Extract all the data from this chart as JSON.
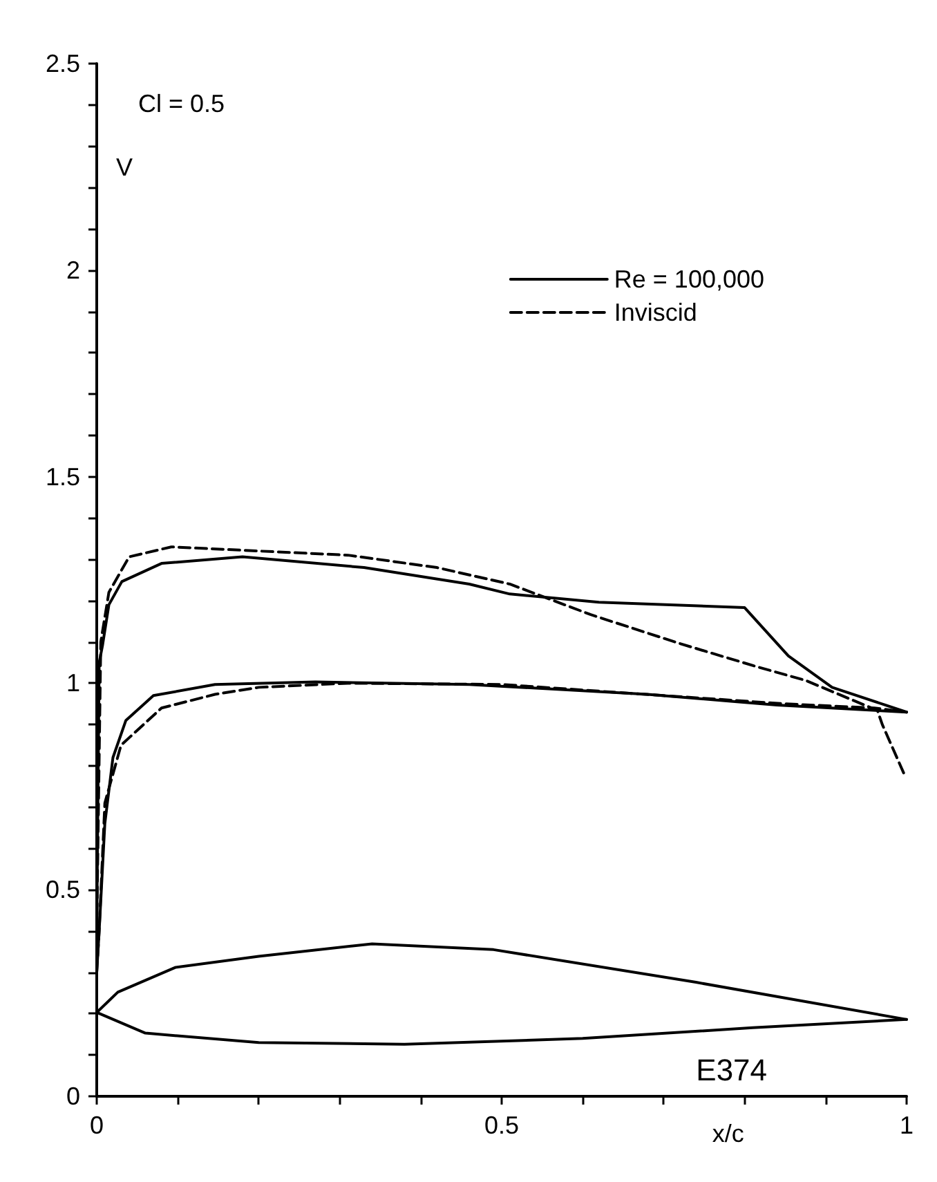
{
  "chart_data": {
    "type": "line",
    "xlabel": "x/c",
    "ylabel": "V",
    "annotations": [
      "Cl = 0.5",
      "E374"
    ],
    "xlim": [
      0,
      1
    ],
    "xticks": [
      0,
      {
        "value": 0.1,
        "label": null
      },
      {
        "value": 0.2,
        "label": null
      },
      {
        "value": 0.3,
        "label": null
      },
      {
        "value": 0.4,
        "label": null
      },
      0.5,
      {
        "value": 0.6,
        "label": null
      },
      {
        "value": 0.7,
        "label": null
      },
      {
        "value": 0.8,
        "label": null
      },
      {
        "value": 0.9,
        "label": null
      },
      1
    ],
    "ylim": [
      0,
      2.5
    ],
    "yticks": [
      0,
      {
        "value": 0.1,
        "label": null
      },
      {
        "value": 0.2,
        "label": null
      },
      {
        "value": 0.3,
        "label": null
      },
      {
        "value": 0.4,
        "label": null
      },
      0.5,
      {
        "value": 0.6,
        "label": null
      },
      {
        "value": 0.7,
        "label": null
      },
      {
        "value": 0.8,
        "label": null
      },
      {
        "value": 0.9,
        "label": null
      },
      1,
      {
        "value": 1.1,
        "label": null
      },
      {
        "value": 1.2,
        "label": null
      },
      {
        "value": 1.3,
        "label": null
      },
      {
        "value": 1.4,
        "label": null
      },
      1.5,
      {
        "value": 1.6,
        "label": null
      },
      {
        "value": 1.7,
        "label": null
      },
      {
        "value": 1.8,
        "label": null
      },
      {
        "value": 1.9,
        "label": null
      },
      2,
      {
        "value": 2.1,
        "label": null
      },
      {
        "value": 2.2,
        "label": null
      },
      {
        "value": 2.3,
        "label": null
      },
      {
        "value": 2.4,
        "label": null
      },
      2.5
    ],
    "grid": false,
    "legend": "top right",
    "marker": "none",
    "series": [
      {
        "name": "Re = 100,000",
        "color": "#000000",
        "line_style": "solid",
        "x": [
          0,
          0.003,
          0.007,
          0.015,
          0.031,
          0.08,
          0.18,
          0.33,
          0.46,
          0.51,
          0.62,
          0.8,
          0.854,
          0.908,
          1
        ],
        "values": [
          0.4,
          1.05,
          1.09,
          1.19,
          1.246,
          1.29,
          1.306,
          1.28,
          1.24,
          1.216,
          1.196,
          1.183,
          1.066,
          0.99,
          0.93
        ]
      },
      {
        "color": "#000000",
        "line_style": "solid",
        "x": [
          0,
          0.003,
          0.01,
          0.02,
          0.036,
          0.07,
          0.146,
          0.27,
          0.46,
          0.68,
          0.84,
          1
        ],
        "values": [
          0.3,
          0.4,
          0.66,
          0.82,
          0.91,
          0.97,
          0.997,
          1.003,
          0.997,
          0.973,
          0.947,
          0.93
        ]
      },
      {
        "name": "Inviscid",
        "color": "#000000",
        "line_style": "dashed",
        "x": [
          0,
          0.005,
          0.015,
          0.04,
          0.092,
          0.2,
          0.31,
          0.42,
          0.51,
          0.61,
          0.72,
          0.815,
          0.875,
          0.964,
          0.97,
          0.997
        ],
        "values": [
          0.4,
          1.1,
          1.22,
          1.306,
          1.33,
          1.32,
          1.31,
          1.28,
          1.24,
          1.166,
          1.096,
          1.04,
          1.007,
          0.934,
          0.9,
          0.78
        ]
      },
      {
        "color": "#000000",
        "line_style": "dashed",
        "x": [
          0,
          0.003,
          0.01,
          0.03,
          0.08,
          0.146,
          0.2,
          0.31,
          0.5,
          0.7,
          0.85,
          0.96,
          1
        ],
        "values": [
          0.3,
          0.4,
          0.71,
          0.85,
          0.94,
          0.973,
          0.99,
          1.0,
          0.997,
          0.97,
          0.95,
          0.94,
          0.93
        ]
      },
      {
        "type": "line",
        "color": "#000000",
        "line_style": "solid",
        "x": [
          0,
          0.026,
          0.097,
          0.2,
          0.34,
          0.49,
          0.74,
          1
        ],
        "values": [
          0.203,
          0.252,
          0.312,
          0.339,
          0.369,
          0.355,
          0.276,
          0.186
        ]
      },
      {
        "type": "line",
        "color": "#000000",
        "line_style": "solid",
        "x": [
          0,
          0.06,
          0.2,
          0.38,
          0.6,
          0.81,
          1
        ],
        "values": [
          0.203,
          0.153,
          0.13,
          0.126,
          0.14,
          0.166,
          0.186
        ]
      }
    ]
  }
}
